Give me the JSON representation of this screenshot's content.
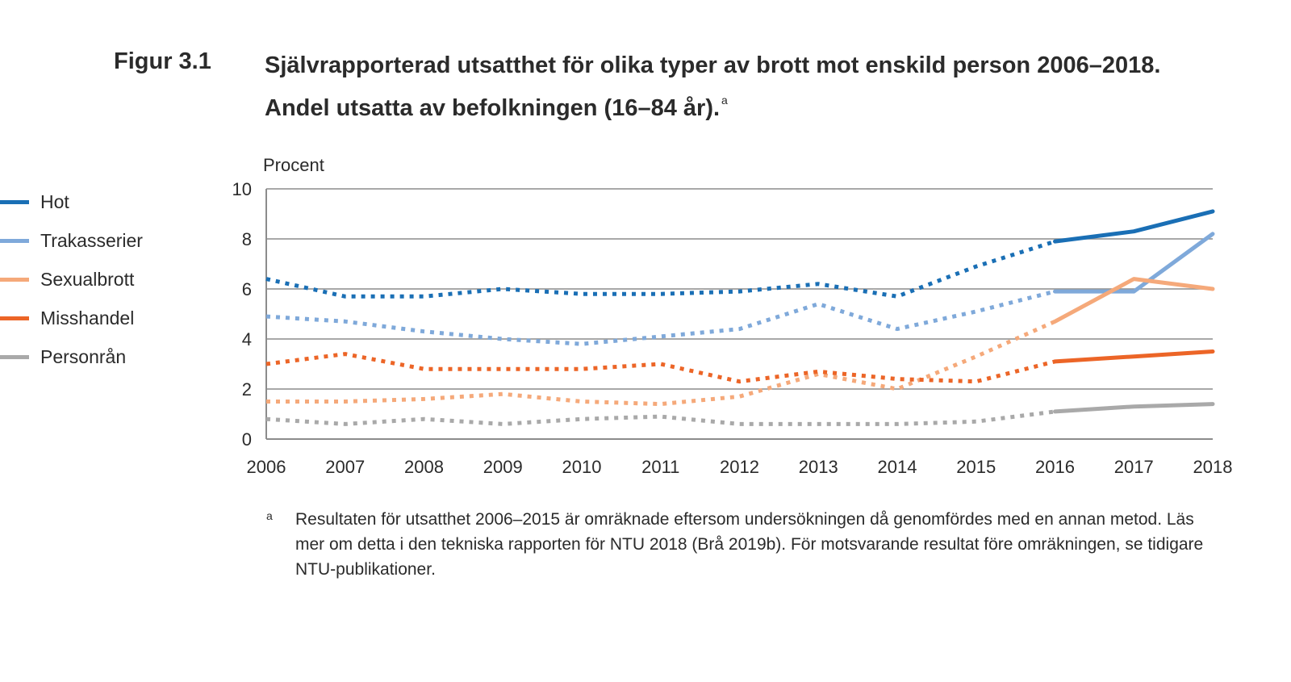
{
  "figure": {
    "label": "Figur 3.1",
    "title": "Självrapporterad utsatthet för olika typer av brott mot enskild person 2006–2018. Andel utsatta av befolkningen (16–84 år).",
    "title_sup": "a"
  },
  "footnote": {
    "mark": "a",
    "text": "Resultaten för utsatthet 2006–2015 är omräknade eftersom undersökningen då genomfördes med en annan metod. Läs mer om detta i den tekniska rapporten för NTU 2018 (Brå 2019b). För motsvarande resultat före omräkningen, se tidigare NTU-publikationer."
  },
  "chart_data": {
    "type": "line",
    "title": "",
    "ylabel": "Procent",
    "xlabel": "",
    "ylim": [
      0,
      10
    ],
    "yticks": [
      0,
      2,
      4,
      6,
      8,
      10
    ],
    "x": [
      2006,
      2007,
      2008,
      2009,
      2010,
      2011,
      2012,
      2013,
      2014,
      2015,
      2016,
      2017,
      2018
    ],
    "dashed_until": 2016,
    "grid": true,
    "legend_position": "left",
    "series": [
      {
        "name": "Hot",
        "color": "#1a6fb5",
        "values": [
          6.4,
          5.7,
          5.7,
          6.0,
          5.8,
          5.8,
          5.9,
          6.2,
          5.7,
          6.9,
          7.9,
          8.3,
          9.1
        ]
      },
      {
        "name": "Trakasserier",
        "color": "#7fa9da",
        "values": [
          4.9,
          4.7,
          4.3,
          4.0,
          3.8,
          4.1,
          4.4,
          5.4,
          4.4,
          5.1,
          5.9,
          5.9,
          8.2
        ]
      },
      {
        "name": "Sexualbrott",
        "color": "#f5a97a",
        "values": [
          1.5,
          1.5,
          1.6,
          1.8,
          1.5,
          1.4,
          1.7,
          2.6,
          2.0,
          3.3,
          4.7,
          6.4,
          6.0
        ]
      },
      {
        "name": "Misshandel",
        "color": "#ec6527",
        "values": [
          3.0,
          3.4,
          2.8,
          2.8,
          2.8,
          3.0,
          2.3,
          2.7,
          2.4,
          2.3,
          3.1,
          3.3,
          3.5
        ]
      },
      {
        "name": "Personrån",
        "color": "#a9a9a9",
        "values": [
          0.8,
          0.6,
          0.8,
          0.6,
          0.8,
          0.9,
          0.6,
          0.6,
          0.6,
          0.7,
          1.1,
          1.3,
          1.4
        ]
      }
    ]
  }
}
